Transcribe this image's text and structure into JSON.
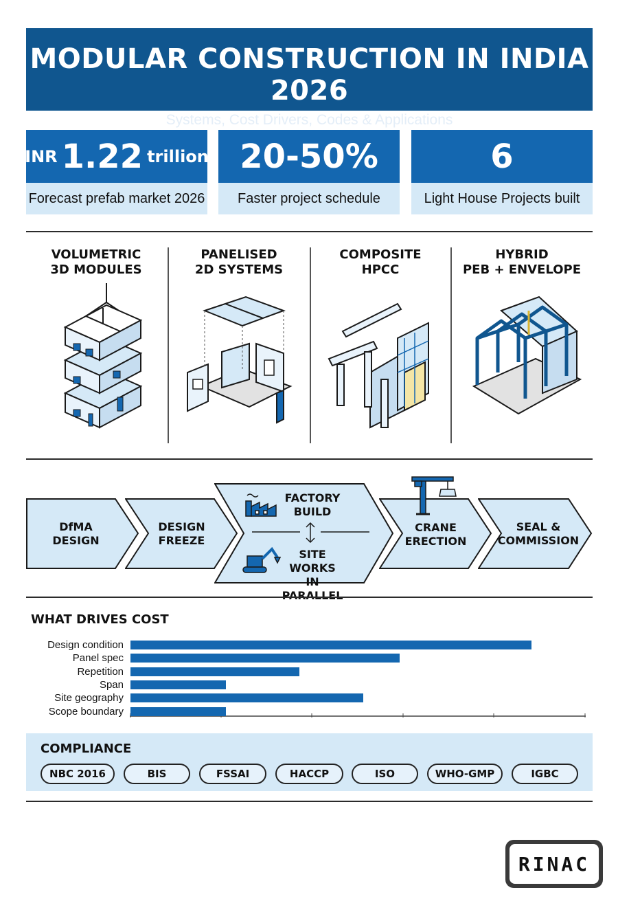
{
  "header": {
    "title": "MODULAR CONSTRUCTION IN INDIA 2026",
    "subtitle": "Systems, Cost Drivers, Codes & Applications"
  },
  "stats": [
    {
      "prefix": "INR",
      "value": "1.22",
      "suffix": "trillion",
      "label": "Forecast prefab market 2026"
    },
    {
      "prefix": "",
      "value": "20-50%",
      "suffix": "",
      "label": "Faster project schedule"
    },
    {
      "prefix": "",
      "value": "6",
      "suffix": "",
      "label": "Light House Projects built"
    }
  ],
  "systems": [
    {
      "line1": "VOLUMETRIC",
      "line2": "3D MODULES",
      "icon": "stacked-modules-icon"
    },
    {
      "line1": "PANELISED",
      "line2": "2D SYSTEMS",
      "icon": "exploded-panels-icon"
    },
    {
      "line1": "COMPOSITE",
      "line2": "HPCC",
      "icon": "precast-frame-icon"
    },
    {
      "line1": "HYBRID",
      "line2": "PEB + ENVELOPE",
      "icon": "steel-shed-icon"
    }
  ],
  "process": {
    "step1": {
      "line1": "DfMA",
      "line2": "DESIGN"
    },
    "step2": {
      "line1": "DESIGN",
      "line2": "FREEZE"
    },
    "step3a": {
      "line1": "FACTORY",
      "line2": "BUILD"
    },
    "step3b": {
      "line1": "SITE WORKS",
      "line2": "IN PARALLEL"
    },
    "step4": {
      "line1": "CRANE",
      "line2": "ERECTION"
    },
    "step5": {
      "line1": "SEAL &",
      "line2": "COMMISSION"
    }
  },
  "cost": {
    "title": "WHAT DRIVES COST",
    "drivers": [
      {
        "label": "Design condition",
        "value": 88
      },
      {
        "label": "Panel spec",
        "value": 59
      },
      {
        "label": "Repetition",
        "value": 37
      },
      {
        "label": "Span",
        "value": 21
      },
      {
        "label": "Site geography",
        "value": 51
      },
      {
        "label": "Scope boundary",
        "value": 21
      }
    ],
    "max": 100
  },
  "compliance": {
    "title": "COMPLIANCE",
    "codes": [
      "NBC 2016",
      "BIS",
      "FSSAI",
      "HACCP",
      "ISO",
      "WHO-GMP",
      "IGBC"
    ]
  },
  "logo": {
    "text": "RINAC"
  },
  "colors": {
    "primary": "#1467b0",
    "dark": "#10568f",
    "light": "#d5e9f7"
  }
}
